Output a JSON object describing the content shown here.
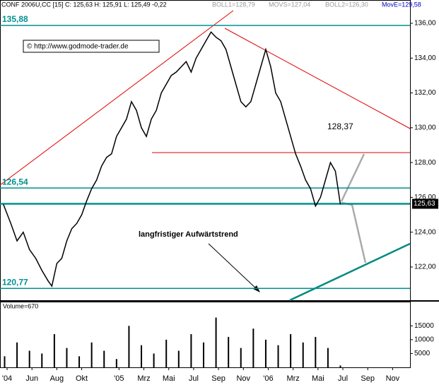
{
  "chart_data": [
    {
      "type": "line",
      "header": "CONF 2006U,CC [15] C: 125,63 H: 125,91 L: 125,49 -0,22",
      "indicators": [
        "BOLL1=128,79",
        "MOVS=127,04",
        "BOLL2=126,30",
        "MovE=129,58"
      ],
      "copyright": "© http://www.godmode-trader.de",
      "annotation": "langfristiger Aufwärtstrend",
      "target_label": "128,37",
      "last_price": {
        "value": 125.63,
        "label": "125,63"
      },
      "x": [
        -0.3,
        0.3,
        0.8,
        1.3,
        1.8,
        2.3,
        2.8,
        3.3,
        3.6,
        4.0,
        4.4,
        4.8,
        5.2,
        5.6,
        6.0,
        6.4,
        6.8,
        7.2,
        7.6,
        8.0,
        8.4,
        8.8,
        9.2,
        9.6,
        10.0,
        10.4,
        10.8,
        11.2,
        11.6,
        12.0,
        12.4,
        12.8,
        13.2,
        13.6,
        14.0,
        14.4,
        14.8,
        15.2,
        15.6,
        16.0,
        16.4,
        16.8,
        17.2,
        17.6,
        18.0,
        18.4,
        18.8,
        19.2,
        19.6,
        20.0,
        20.4,
        20.8,
        21.2,
        21.6,
        22.0,
        22.4,
        22.8,
        23.2,
        23.6,
        24.0,
        24.4,
        24.8,
        25.2,
        25.6,
        26.0,
        26.4,
        26.8
      ],
      "series": [
        {
          "name": "CONF 2006U",
          "color": "#000000",
          "values": [
            125.6,
            124.5,
            123.5,
            124.0,
            123.0,
            122.5,
            121.8,
            121.2,
            120.9,
            122.2,
            122.5,
            123.5,
            124.2,
            124.5,
            125.0,
            125.8,
            126.5,
            127.0,
            127.8,
            128.3,
            128.5,
            129.5,
            130.0,
            130.5,
            131.5,
            131.0,
            130.0,
            129.5,
            130.5,
            131.0,
            132.0,
            132.5,
            133.0,
            133.2,
            133.5,
            133.8,
            133.2,
            134.0,
            134.5,
            135.0,
            135.5,
            135.2,
            135.0,
            134.5,
            133.5,
            132.5,
            131.5,
            131.2,
            131.5,
            132.5,
            133.5,
            134.5,
            133.5,
            132.0,
            131.5,
            130.5,
            129.5,
            128.5,
            127.8,
            127.0,
            126.5,
            125.5,
            126.0,
            127.0,
            128.0,
            127.5,
            125.6
          ]
        }
      ],
      "levels": [
        {
          "value": 135.88,
          "label": "135,88"
        },
        {
          "value": 126.54,
          "label": "126,54"
        },
        {
          "value": 120.77,
          "label": "120,77"
        }
      ],
      "level_color": "#009090",
      "xlim": [
        -0.57,
        32.4
      ],
      "ylim": [
        120.09,
        137.34
      ],
      "yticks": [
        {
          "value": 122,
          "label": "122,00"
        },
        {
          "value": 124,
          "label": "124,00"
        },
        {
          "value": 126,
          "label": "126,00"
        },
        {
          "value": 128,
          "label": "128,00"
        },
        {
          "value": 130,
          "label": "130,00"
        },
        {
          "value": 132,
          "label": "132,00"
        },
        {
          "value": 134,
          "label": "134,00"
        },
        {
          "value": 136,
          "label": "136,00"
        }
      ]
    },
    {
      "type": "bar",
      "title": "Volume=670",
      "color": "#000000",
      "x": [
        -0.2,
        0.8,
        1.8,
        2.8,
        3.8,
        4.8,
        5.8,
        6.8,
        7.8,
        8.8,
        9.8,
        10.8,
        11.8,
        12.8,
        13.8,
        14.8,
        15.8,
        16.8,
        17.8,
        18.8,
        19.8,
        20.8,
        21.8,
        22.8,
        23.8,
        24.8,
        25.8,
        26.8
      ],
      "values": [
        4000,
        9000,
        6000,
        5000,
        12000,
        7000,
        4000,
        9000,
        6000,
        3000,
        15000,
        8000,
        5000,
        10000,
        6000,
        12000,
        9000,
        18000,
        11000,
        7000,
        14000,
        10000,
        8000,
        12000,
        9000,
        11000,
        7000,
        670
      ],
      "xlim": [
        -0.57,
        32.4
      ],
      "ylim": [
        0,
        23500
      ],
      "yticks": [
        5000,
        10000,
        15000
      ],
      "xticks": [
        {
          "value": 0,
          "label": "'04"
        },
        {
          "value": 2,
          "label": "Jun"
        },
        {
          "value": 4,
          "label": "Aug"
        },
        {
          "value": 6,
          "label": "Okt"
        },
        {
          "value": 9,
          "label": "'05"
        },
        {
          "value": 11,
          "label": "Mrz"
        },
        {
          "value": 13,
          "label": "Mai"
        },
        {
          "value": 15,
          "label": "Jul"
        },
        {
          "value": 17,
          "label": "Sep"
        },
        {
          "value": 19,
          "label": "Nov"
        },
        {
          "value": 21,
          "label": "'06"
        },
        {
          "value": 23,
          "label": "Mrz"
        },
        {
          "value": 25,
          "label": "Mai"
        },
        {
          "value": 27,
          "label": "Jul"
        },
        {
          "value": 29,
          "label": "Sep"
        },
        {
          "value": 31,
          "label": "Nov"
        }
      ]
    }
  ]
}
